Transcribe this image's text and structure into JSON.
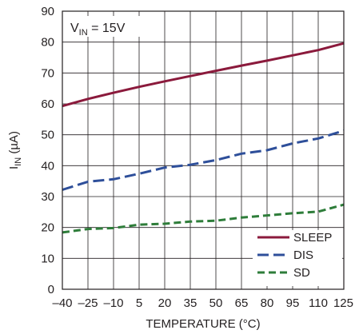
{
  "chart_data": {
    "type": "line",
    "xlabel": "TEMPERATURE (°C)",
    "ylabel": {
      "main": "I",
      "sub": "IN",
      "rest": " (µA)"
    },
    "annotation": {
      "main": "V",
      "sub": "IN",
      "rest": " = 15V"
    },
    "xlim": [
      -40,
      125
    ],
    "ylim": [
      0,
      90
    ],
    "x_ticks": [
      -40,
      -25,
      -10,
      5,
      20,
      35,
      50,
      65,
      80,
      95,
      110,
      125
    ],
    "x_tick_labels": [
      "–40",
      "–25",
      "–10",
      "5",
      "20",
      "35",
      "50",
      "65",
      "80",
      "95",
      "110",
      "125"
    ],
    "y_ticks": [
      0,
      10,
      20,
      30,
      40,
      50,
      60,
      70,
      80,
      90
    ],
    "y_tick_labels": [
      "0",
      "10",
      "20",
      "30",
      "40",
      "50",
      "60",
      "70",
      "80",
      "90"
    ],
    "grid": true,
    "legend_position": "bottom-right",
    "series": [
      {
        "name": "SLEEP",
        "color": "#8b1a3c",
        "style": "solid",
        "x": [
          -40,
          -25,
          -10,
          5,
          20,
          35,
          50,
          65,
          80,
          95,
          110,
          125
        ],
        "y": [
          59.3,
          61.6,
          63.6,
          65.5,
          67.3,
          69.0,
          70.7,
          72.4,
          74.0,
          75.7,
          77.4,
          79.6
        ]
      },
      {
        "name": "DIS",
        "color": "#2e4f9a",
        "style": "dashed",
        "x": [
          -40,
          -25,
          -10,
          5,
          20,
          35,
          50,
          65,
          80,
          95,
          110,
          125
        ],
        "y": [
          32.2,
          34.8,
          35.6,
          37.4,
          39.4,
          40.3,
          41.8,
          43.9,
          45.0,
          47.2,
          48.8,
          51.3
        ]
      },
      {
        "name": "SD",
        "color": "#2e7d3a",
        "style": "dashed",
        "x": [
          -40,
          -25,
          -10,
          5,
          20,
          35,
          50,
          65,
          80,
          95,
          110,
          125
        ],
        "y": [
          18.4,
          19.5,
          19.8,
          20.9,
          21.2,
          21.9,
          22.2,
          23.2,
          23.9,
          24.6,
          25.1,
          27.4
        ]
      }
    ]
  }
}
